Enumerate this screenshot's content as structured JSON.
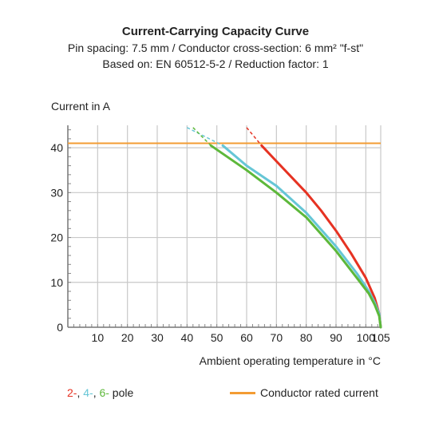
{
  "header": {
    "title": "Current-Carrying Capacity Curve",
    "subtitle1": "Pin spacing: 7.5 mm / Conductor cross-section: 6 mm² \"f-st\"",
    "subtitle2": "Based on: EN 60512-5-2 / Reduction factor: 1"
  },
  "legend": {
    "pole_parts": [
      {
        "text": "2-",
        "color": "#e63222"
      },
      {
        "text": ", ",
        "color": "#222222"
      },
      {
        "text": "4-",
        "color": "#66c6d6"
      },
      {
        "text": ", ",
        "color": "#222222"
      },
      {
        "text": "6-",
        "color": "#5db83a"
      },
      {
        "text": " pole",
        "color": "#222222"
      }
    ],
    "rated_label": "Conductor rated current",
    "rated_color": "#f39c33"
  },
  "chart_data": {
    "type": "line",
    "ylabel": "Current in A",
    "xlabel": "Ambient operating temperature in °C",
    "xlim": [
      0,
      105
    ],
    "ylim": [
      0,
      45
    ],
    "x_ticks": [
      10,
      20,
      30,
      40,
      50,
      60,
      70,
      80,
      90,
      100,
      105
    ],
    "y_ticks": [
      0,
      10,
      20,
      30,
      40
    ],
    "grid": true,
    "rated_current": 41,
    "series": [
      {
        "name": "2-",
        "color": "#e63222",
        "solid": [
          [
            65,
            40.5
          ],
          [
            70,
            37
          ],
          [
            75,
            33.5
          ],
          [
            80,
            30
          ],
          [
            85,
            26
          ],
          [
            90,
            21.5
          ],
          [
            95,
            16.5
          ],
          [
            100,
            11
          ],
          [
            103,
            6.5
          ],
          [
            104.5,
            3
          ],
          [
            105,
            0
          ]
        ],
        "dashed": [
          [
            60,
            44.5
          ],
          [
            65,
            40.5
          ]
        ]
      },
      {
        "name": "4-",
        "color": "#66c6d6",
        "solid": [
          [
            52,
            40.5
          ],
          [
            60,
            36
          ],
          [
            70,
            31.5
          ],
          [
            80,
            25.5
          ],
          [
            90,
            18
          ],
          [
            97,
            12
          ],
          [
            101,
            8
          ],
          [
            103,
            5.5
          ],
          [
            104.5,
            3
          ],
          [
            105,
            0
          ]
        ],
        "dashed": [
          [
            40,
            44.5
          ],
          [
            52,
            40.5
          ]
        ]
      },
      {
        "name": "6-",
        "color": "#5db83a",
        "solid": [
          [
            48,
            40.5
          ],
          [
            60,
            35
          ],
          [
            70,
            30
          ],
          [
            80,
            24.5
          ],
          [
            90,
            17
          ],
          [
            97,
            11
          ],
          [
            101,
            7.5
          ],
          [
            103,
            5
          ],
          [
            104.5,
            2.5
          ],
          [
            105,
            0
          ]
        ],
        "dashed": [
          [
            42,
            44.5
          ],
          [
            48,
            40.5
          ]
        ]
      }
    ]
  }
}
